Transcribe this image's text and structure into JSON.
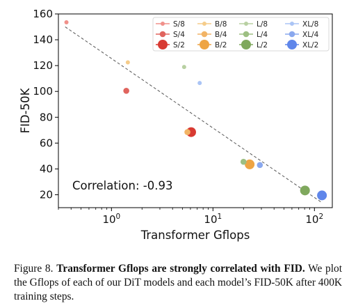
{
  "chart_data": {
    "type": "scatter",
    "xscale": "log",
    "xlim": [
      0.3,
      150
    ],
    "ylim": [
      10,
      160
    ],
    "xlabel": "Transformer Gflops",
    "ylabel": "FID-50K",
    "yticks": [
      20,
      40,
      60,
      80,
      100,
      120,
      140,
      160
    ],
    "xticks": [
      {
        "value": 1,
        "base": "10",
        "exp": "0"
      },
      {
        "value": 10,
        "base": "10",
        "exp": "1"
      },
      {
        "value": 100,
        "base": "10",
        "exp": "2"
      }
    ],
    "grid": false,
    "legend_position": "top-right",
    "annotation": "Correlation: -0.93",
    "trend_line": {
      "style": "dashed",
      "color": "#555555",
      "from": [
        0.35,
        150
      ],
      "to": [
        118,
        14
      ]
    },
    "series": [
      {
        "name": "S/8",
        "color": "#f0908a",
        "size": "small",
        "x": 0.36,
        "y": 153.5
      },
      {
        "name": "S/4",
        "color": "#e0645e",
        "size": "medium",
        "x": 1.4,
        "y": 100.5
      },
      {
        "name": "S/2",
        "color": "#d83a32",
        "size": "large",
        "x": 6.1,
        "y": 68.5
      },
      {
        "name": "B/8",
        "color": "#f5cc8a",
        "size": "small",
        "x": 1.45,
        "y": 122.5
      },
      {
        "name": "B/4",
        "color": "#f2b466",
        "size": "medium",
        "x": 5.6,
        "y": 68.5
      },
      {
        "name": "B/2",
        "color": "#eea443",
        "size": "large",
        "x": 23,
        "y": 43.5
      },
      {
        "name": "L/8",
        "color": "#b8d0a2",
        "size": "small",
        "x": 5.2,
        "y": 118.9
      },
      {
        "name": "L/4",
        "color": "#9dbf82",
        "size": "medium",
        "x": 20,
        "y": 45.5
      },
      {
        "name": "L/2",
        "color": "#7fa85d",
        "size": "large",
        "x": 80.7,
        "y": 23.3
      },
      {
        "name": "XL/8",
        "color": "#aac4f5",
        "size": "small",
        "x": 7.4,
        "y": 106.5
      },
      {
        "name": "XL/4",
        "color": "#8aa8ee",
        "size": "medium",
        "x": 29,
        "y": 43.0
      },
      {
        "name": "XL/2",
        "color": "#5f86ea",
        "size": "large",
        "x": 118.6,
        "y": 19.5
      }
    ]
  },
  "caption": {
    "label": "Figure 8.",
    "bold": "Transformer Gflops are strongly correlated with FID.",
    "text": "We plot the Gflops of each of our DiT models and each model’s FID-50K after 400K training steps."
  }
}
